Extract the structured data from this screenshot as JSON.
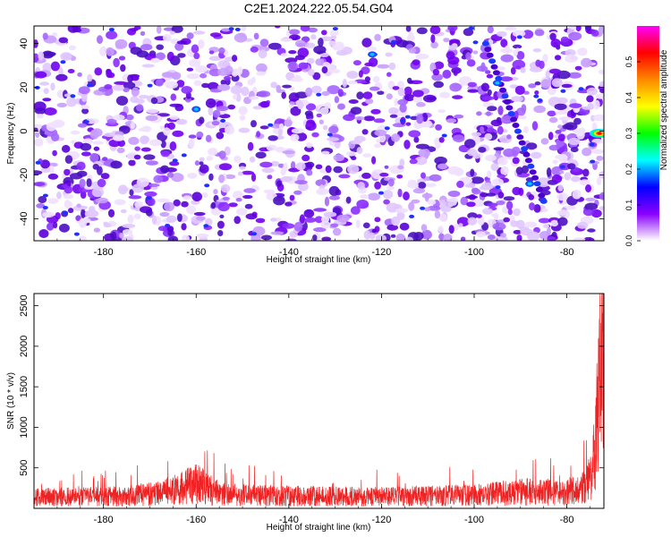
{
  "title": "C2E1.2024.222.05.54.G04",
  "chart_data": [
    {
      "type": "heatmap",
      "xlabel": "Height of straight line (km)",
      "ylabel": "Frequency (Hz)",
      "xlim": [
        -195,
        -72
      ],
      "ylim": [
        -50,
        48
      ],
      "x_ticks": [
        -180,
        -160,
        -140,
        -120,
        -100,
        -80
      ],
      "y_ticks": [
        -40,
        -20,
        0,
        20,
        40
      ],
      "colorbar": {
        "label": "Normalized spectral amplitude",
        "range": [
          0.0,
          0.6
        ],
        "ticks": [
          0.0,
          0.1,
          0.2,
          0.3,
          0.4,
          0.5
        ],
        "colors": [
          "#ffffff",
          "#8a00ff",
          "#0000ff",
          "#00ffff",
          "#00ff00",
          "#ffff00",
          "#ff8800",
          "#ff0000",
          "#ff00ff"
        ]
      },
      "features": [
        {
          "height": -73,
          "frequency": -1,
          "amplitude": 0.55
        },
        {
          "height": -160,
          "frequency": 10,
          "amplitude": 0.15
        },
        {
          "height": -122,
          "frequency": 35,
          "amplitude": 0.12
        },
        {
          "height": -95,
          "frequency": 22,
          "amplitude": 0.12
        },
        {
          "height": -88,
          "frequency": -24,
          "amplitude": 0.12
        }
      ]
    },
    {
      "type": "line",
      "xlabel": "Height of straight line (km)",
      "ylabel": "SNR (10 * v/v)",
      "xlim": [
        -195,
        -72
      ],
      "ylim": [
        0,
        2650
      ],
      "x_ticks": [
        -180,
        -160,
        -140,
        -120,
        -100,
        -80
      ],
      "y_ticks": [
        500,
        1000,
        1500,
        2000,
        2500
      ],
      "color": "#ee2222",
      "series": [
        {
          "x": [
            -195,
            -185,
            -175,
            -170,
            -165,
            -162,
            -160,
            -158,
            -155,
            -150,
            -140,
            -130,
            -120,
            -110,
            -100,
            -95,
            -90,
            -85,
            -80,
            -78,
            -76,
            -75,
            -74,
            -73.5,
            -73,
            -72.5,
            -72
          ],
          "y": [
            150,
            160,
            170,
            200,
            250,
            300,
            350,
            280,
            200,
            180,
            170,
            165,
            160,
            170,
            180,
            200,
            230,
            220,
            220,
            240,
            300,
            450,
            750,
            1100,
            1500,
            2200,
            2600
          ]
        }
      ]
    }
  ]
}
